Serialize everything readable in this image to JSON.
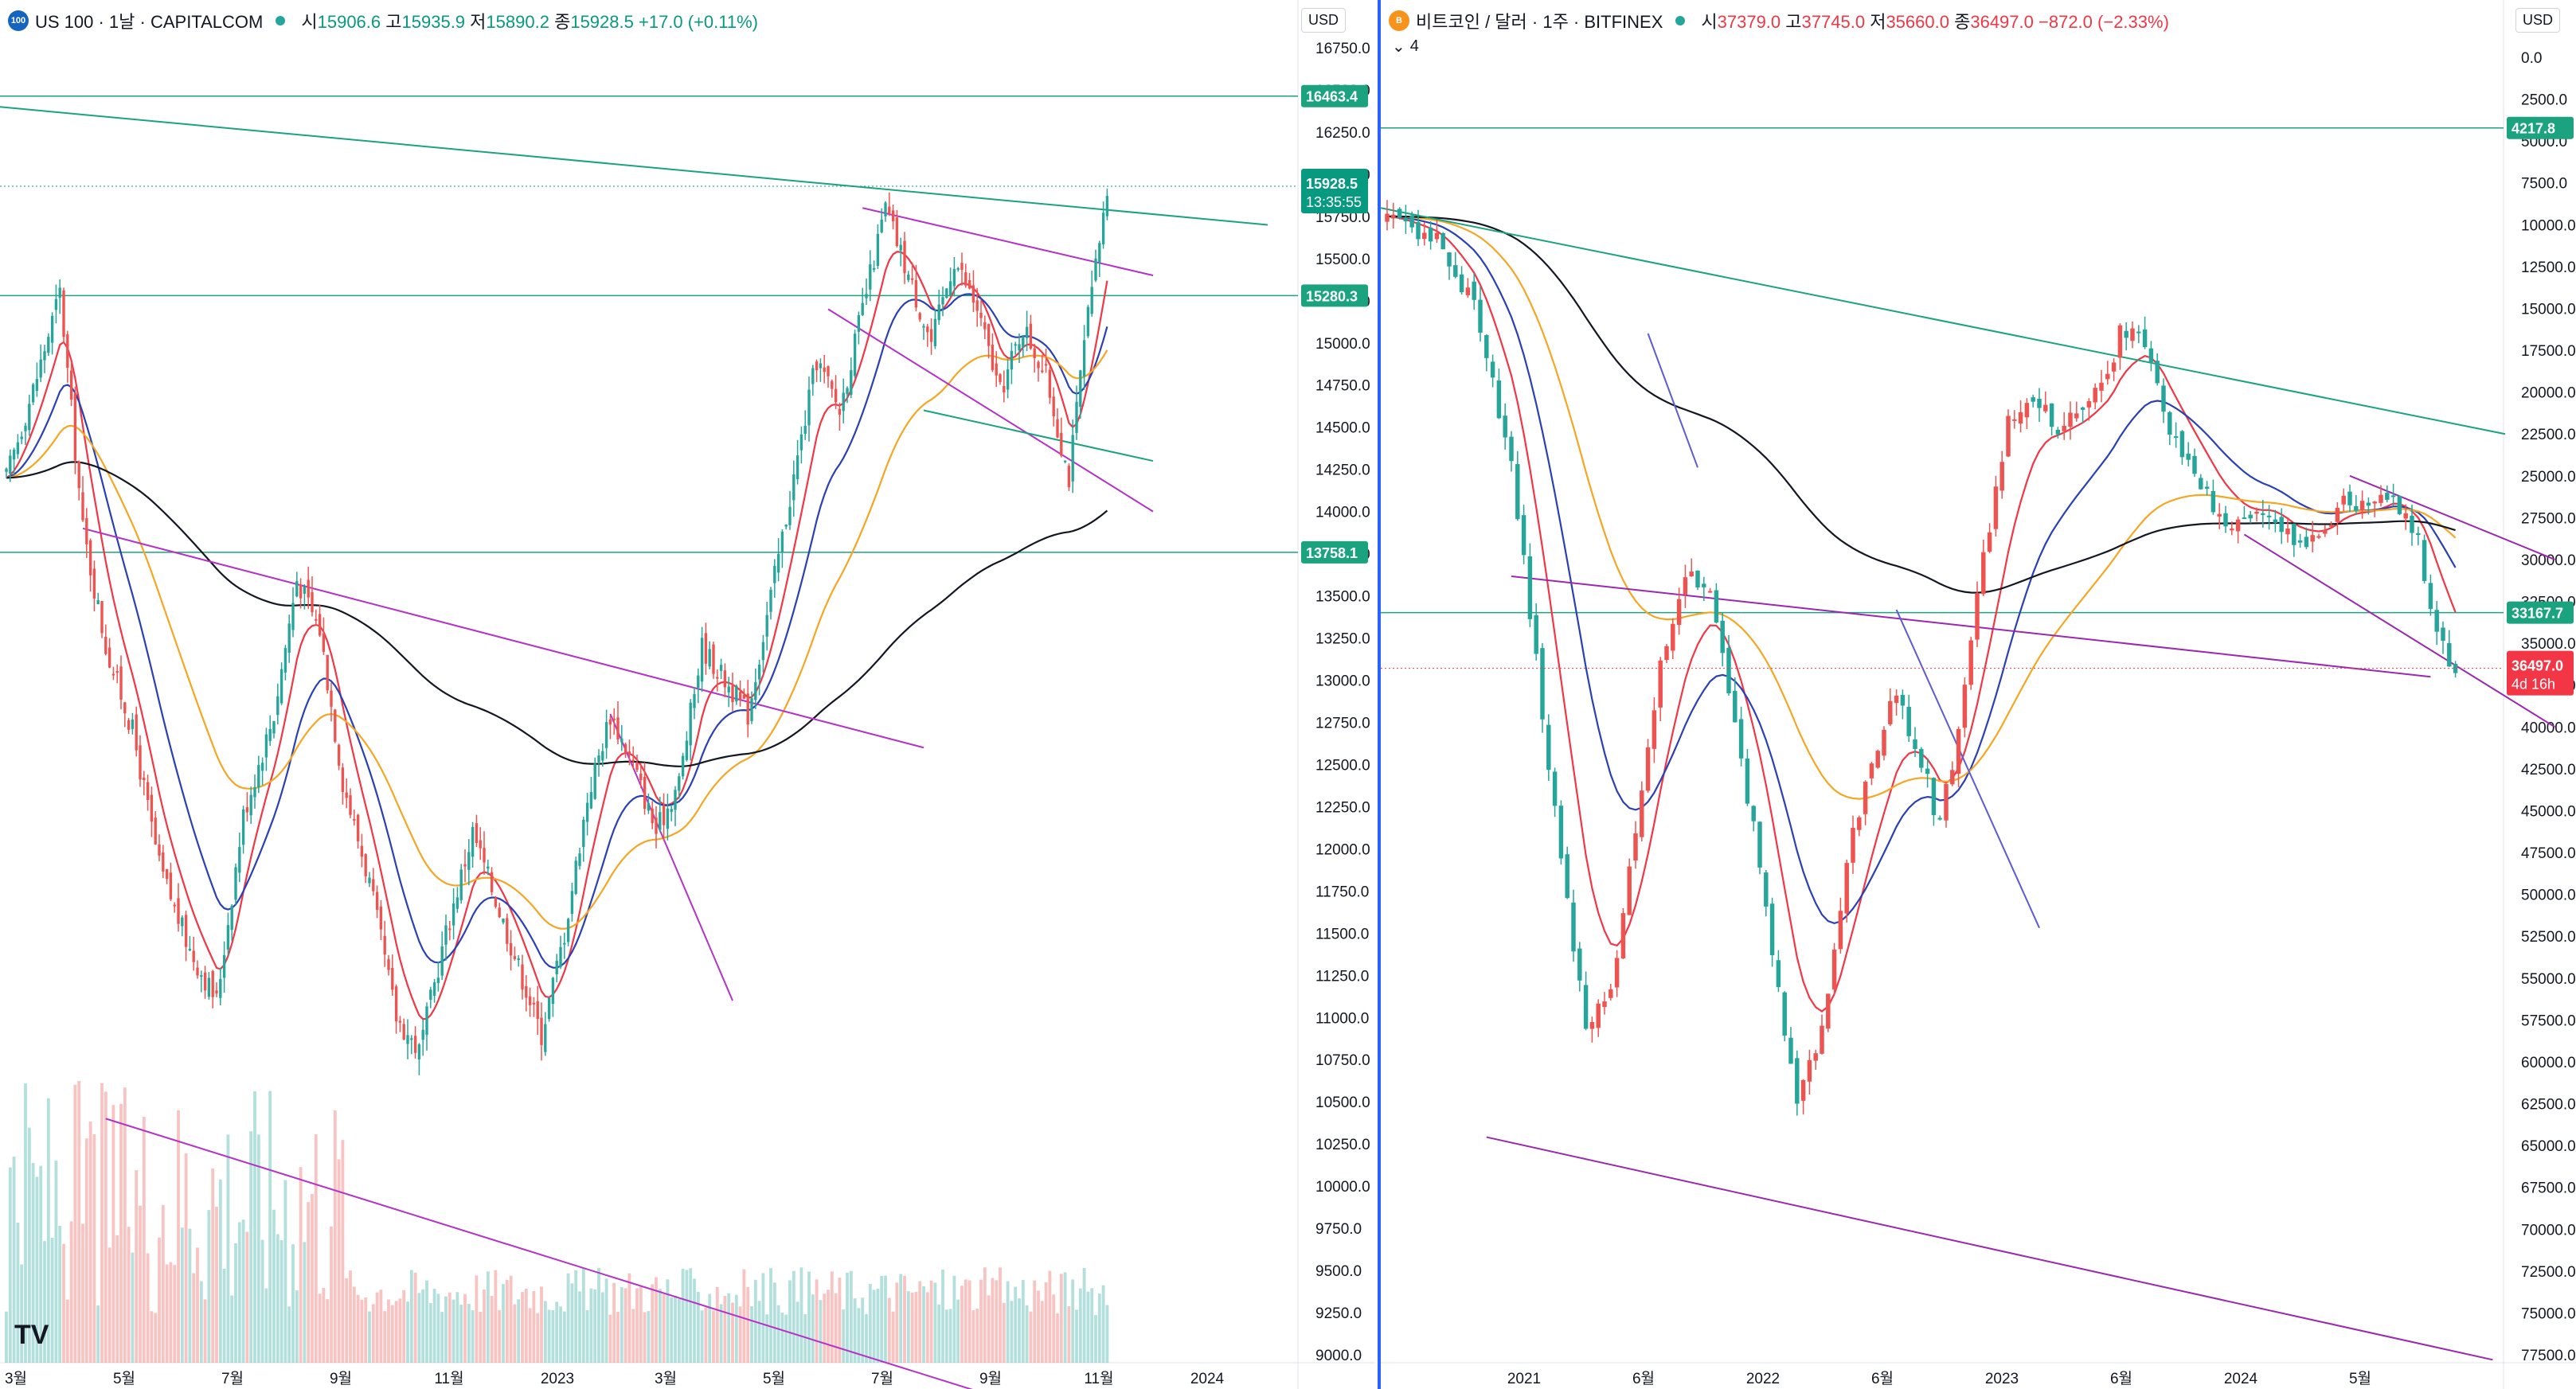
{
  "left": {
    "symbol_badge": "100",
    "title": "US 100 · 1날 · CAPITALCOM",
    "ohlc": [
      {
        "label": "시",
        "value": "15906.6"
      },
      {
        "label": "고",
        "value": "15935.9"
      },
      {
        "label": "저",
        "value": "15890.2"
      },
      {
        "label": "종",
        "value": "15928.5"
      }
    ],
    "change": "+17.0 (+0.11%)",
    "currency": "USD",
    "logo": "TV",
    "colors": {
      "up": "#26a69a",
      "down": "#ef5350",
      "price": "#089981",
      "ema_red": "#f23645",
      "ema_blue": "#2a40b5",
      "ema_orange": "#f5a623",
      "ema_black": "#131722",
      "channel": "#b532c9",
      "hline": "#1ba37f"
    },
    "chart_data": {
      "type": "candlestick",
      "instrument": "US 100",
      "interval": "1날",
      "exchange": "CAPITALCOM",
      "y_axis": {
        "min": 9000,
        "max": 16750,
        "ticks": [
          16750,
          16500,
          16250,
          16000,
          15750,
          15500,
          15250,
          15000,
          14750,
          14500,
          14250,
          14000,
          13750,
          13500,
          13250,
          13000,
          12750,
          12500,
          12250,
          12000,
          11750,
          11500,
          11250,
          11000,
          10750,
          10500,
          10250,
          10000,
          9750,
          9500,
          9250,
          9000
        ]
      },
      "x_axis": {
        "ticks": [
          "3월",
          "5월",
          "7월",
          "9월",
          "11월",
          "2023",
          "3월",
          "5월",
          "7월",
          "9월",
          "11월",
          "2024"
        ]
      },
      "price_tags": [
        {
          "value": "16463.4",
          "price": 16463.4,
          "kind": "line"
        },
        {
          "value": "15928.5",
          "price": 15928.5,
          "kind": "last",
          "countdown": "13:35:55"
        },
        {
          "value": "15280.3",
          "price": 15280.3,
          "kind": "line"
        },
        {
          "value": "13758.1",
          "price": 13758.1,
          "kind": "line"
        }
      ],
      "anchors": [
        [
          0,
          14200
        ],
        [
          8,
          14800
        ],
        [
          14,
          15300
        ],
        [
          20,
          13900
        ],
        [
          26,
          13200
        ],
        [
          33,
          12700
        ],
        [
          40,
          11900
        ],
        [
          48,
          11400
        ],
        [
          55,
          11100
        ],
        [
          62,
          12200
        ],
        [
          70,
          12800
        ],
        [
          76,
          13600
        ],
        [
          82,
          13300
        ],
        [
          88,
          12400
        ],
        [
          95,
          11800
        ],
        [
          102,
          11000
        ],
        [
          108,
          10800
        ],
        [
          115,
          11500
        ],
        [
          122,
          12100
        ],
        [
          128,
          11700
        ],
        [
          134,
          11300
        ],
        [
          140,
          10900
        ],
        [
          146,
          11500
        ],
        [
          152,
          12300
        ],
        [
          158,
          12800
        ],
        [
          164,
          12500
        ],
        [
          170,
          12100
        ],
        [
          176,
          12400
        ],
        [
          182,
          13200
        ],
        [
          188,
          13000
        ],
        [
          194,
          12800
        ],
        [
          200,
          13500
        ],
        [
          206,
          14200
        ],
        [
          212,
          14900
        ],
        [
          218,
          14600
        ],
        [
          224,
          15200
        ],
        [
          230,
          15800
        ],
        [
          236,
          15400
        ],
        [
          242,
          15000
        ],
        [
          248,
          15500
        ],
        [
          254,
          15200
        ],
        [
          260,
          14700
        ],
        [
          266,
          15100
        ],
        [
          272,
          14800
        ],
        [
          278,
          14200
        ],
        [
          282,
          15000
        ],
        [
          288,
          15900
        ]
      ],
      "volume_note": "red/green volume bars along the bottom"
    }
  },
  "right": {
    "symbol_badge": "B",
    "title": "비트코인 / 달러 · 1주 · BITFINEX",
    "ohlc": [
      {
        "label": "시",
        "value": "37379.0"
      },
      {
        "label": "고",
        "value": "37745.0"
      },
      {
        "label": "저",
        "value": "35660.0"
      },
      {
        "label": "종",
        "value": "36497.0"
      }
    ],
    "change": "−872.0 (−2.33%)",
    "indicator_count": "4",
    "currency": "USD",
    "colors": {
      "up": "#26a69a",
      "down": "#ef5350",
      "last": "#f23645",
      "ema_red": "#f23645",
      "ema_blue": "#2a40b5",
      "ema_orange": "#f5a623",
      "ema_black": "#131722",
      "channel": "#9c27b0",
      "channel_blue": "#5b5bd6",
      "hline": "#1ba37f"
    },
    "chart_data": {
      "type": "candlestick",
      "instrument": "비트코인 / 달러",
      "interval": "1주",
      "exchange": "BITFINEX",
      "y_axis": {
        "inverted": true,
        "min": 0,
        "max": 77500,
        "ticks": [
          0.0,
          2500.0,
          5000.0,
          7500.0,
          10000.0,
          12500.0,
          15000.0,
          17500.0,
          20000.0,
          22500.0,
          25000.0,
          27500.0,
          30000.0,
          32500.0,
          35000.0,
          37500.0,
          40000.0,
          42500.0,
          45000.0,
          47500.0,
          50000.0,
          52500.0,
          55000.0,
          57500.0,
          60000.0,
          62500.0,
          65000.0,
          67500.0,
          70000.0,
          72500.0,
          75000.0,
          77500.0
        ]
      },
      "x_axis": {
        "ticks": [
          "2021",
          "6월",
          "2022",
          "6월",
          "2023",
          "6월",
          "2024",
          "5월"
        ]
      },
      "price_tags": [
        {
          "value": "4217.8",
          "price": 4217.8,
          "kind": "line"
        },
        {
          "value": "33167.7",
          "price": 33167.7,
          "kind": "line"
        },
        {
          "value": "36497.0",
          "price": 36497.0,
          "kind": "last",
          "countdown": "4d 16h"
        }
      ],
      "anchors": [
        [
          0,
          9500
        ],
        [
          8,
          11000
        ],
        [
          14,
          15000
        ],
        [
          20,
          24000
        ],
        [
          24,
          36000
        ],
        [
          28,
          48000
        ],
        [
          32,
          58000
        ],
        [
          36,
          56000
        ],
        [
          40,
          46000
        ],
        [
          44,
          36000
        ],
        [
          48,
          31000
        ],
        [
          52,
          32000
        ],
        [
          56,
          40000
        ],
        [
          60,
          48000
        ],
        [
          63,
          56000
        ],
        [
          66,
          62000
        ],
        [
          70,
          58000
        ],
        [
          74,
          48000
        ],
        [
          78,
          42000
        ],
        [
          82,
          38000
        ],
        [
          86,
          42000
        ],
        [
          89,
          46000
        ],
        [
          92,
          40000
        ],
        [
          96,
          30000
        ],
        [
          100,
          22000
        ],
        [
          104,
          20000
        ],
        [
          108,
          22000
        ],
        [
          112,
          21000
        ],
        [
          116,
          19000
        ],
        [
          118,
          16500
        ],
        [
          122,
          17000
        ],
        [
          126,
          22500
        ],
        [
          130,
          25000
        ],
        [
          134,
          27500
        ],
        [
          138,
          28000
        ],
        [
          142,
          27000
        ],
        [
          146,
          29000
        ],
        [
          150,
          28500
        ],
        [
          154,
          26500
        ],
        [
          158,
          27000
        ],
        [
          162,
          26000
        ],
        [
          166,
          29000
        ],
        [
          169,
          34500
        ],
        [
          172,
          37000
        ]
      ]
    }
  }
}
